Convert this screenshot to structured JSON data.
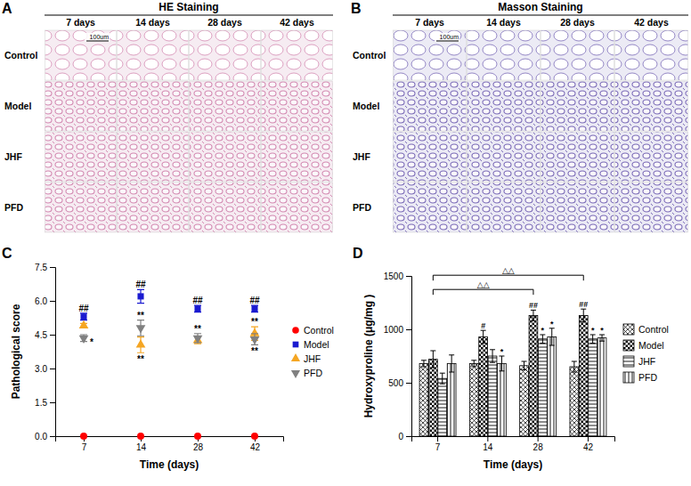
{
  "panels": [
    {
      "panel_label": "A",
      "title": "HE Staining",
      "columns": [
        "7 days",
        "14 days",
        "28 days",
        "42 days"
      ],
      "rows": [
        "Control",
        "Model",
        "JHF",
        "PFD"
      ],
      "scale_bar": "100um"
    },
    {
      "panel_label": "B",
      "title": "Masson Staining",
      "columns": [
        "7 days",
        "14 days",
        "28 days",
        "42 days"
      ],
      "rows": [
        "Control",
        "Model",
        "JHF",
        "PFD"
      ],
      "scale_bar": "100um"
    }
  ],
  "chart_data": [
    {
      "panel_label": "C",
      "type": "scatter",
      "x_label": "Time (days)",
      "y_label": "Pathological score",
      "categories": [
        "7",
        "14",
        "28",
        "42"
      ],
      "ylim": [
        0,
        7.5
      ],
      "yticks": [
        {
          "value": 0,
          "label": "0.0"
        },
        1.5,
        {
          "value": 3,
          "label": "3.0"
        },
        4.5,
        {
          "value": 6,
          "label": "6.0"
        },
        7.5
      ],
      "legend": "right",
      "series": [
        {
          "name": "Control",
          "color": "#ff0000",
          "marker": "circle",
          "values": [
            0,
            0,
            0,
            0
          ],
          "errors": [
            0,
            0,
            0,
            0
          ]
        },
        {
          "name": "Model",
          "color": "#1a1ad0",
          "marker": "square",
          "values": [
            5.3,
            6.2,
            5.65,
            5.65
          ],
          "errors": [
            0.15,
            0.3,
            0.15,
            0.15
          ]
        },
        {
          "name": "JHF",
          "color": "#f5a623",
          "marker": "triangle",
          "values": [
            4.9,
            4.05,
            4.25,
            4.55
          ],
          "errors": [
            0.1,
            0.35,
            0.15,
            0.3
          ]
        },
        {
          "name": "PFD",
          "color": "#808080",
          "marker": "triangle-down",
          "values": [
            4.35,
            4.8,
            4.35,
            4.3
          ],
          "errors": [
            0.15,
            0.35,
            0.2,
            0.25
          ]
        }
      ],
      "annotations": [
        {
          "text": "##",
          "category": "7",
          "series": "Model",
          "position": "above"
        },
        {
          "text": "*",
          "category": "7",
          "series": "PFD",
          "position": "right"
        },
        {
          "text": "##",
          "category": "14",
          "series": "Model",
          "position": "above"
        },
        {
          "text": "**",
          "category": "14",
          "series": "PFD",
          "position": "above"
        },
        {
          "text": "**",
          "category": "14",
          "series": "JHF",
          "position": "below"
        },
        {
          "text": "##",
          "category": "28",
          "series": "Model",
          "position": "above"
        },
        {
          "text": "**",
          "category": "28",
          "series": "PFD",
          "position": "above"
        },
        {
          "text": "##",
          "category": "42",
          "series": "Model",
          "position": "above"
        },
        {
          "text": "**",
          "category": "42",
          "series": "JHF",
          "position": "above"
        },
        {
          "text": "**",
          "category": "42",
          "series": "PFD",
          "position": "below"
        }
      ]
    },
    {
      "panel_label": "D",
      "type": "bar",
      "x_label": "Time (days)",
      "y_label": "Hydroxyproline (μg/mg )",
      "categories": [
        "7",
        "14",
        "28",
        "42"
      ],
      "ylim": [
        0,
        1500
      ],
      "yticks": [
        0,
        500,
        1000,
        1500
      ],
      "legend": "right",
      "series": [
        {
          "name": "Control",
          "color": "#000000",
          "values": [
            680,
            680,
            660,
            650
          ],
          "errors": [
            30,
            30,
            40,
            50
          ]
        },
        {
          "name": "Model",
          "color": "#000000",
          "values": [
            720,
            930,
            1130,
            1130
          ],
          "errors": [
            80,
            60,
            50,
            60
          ]
        },
        {
          "name": "JHF",
          "color": "#000000",
          "values": [
            540,
            750,
            910,
            910
          ],
          "errors": [
            50,
            60,
            40,
            40
          ]
        },
        {
          "name": "PFD",
          "color": "#000000",
          "values": [
            680,
            680,
            930,
            920
          ],
          "errors": [
            80,
            70,
            80,
            30
          ]
        }
      ],
      "annotations": [
        {
          "text": "#",
          "category": "14",
          "series": "Model",
          "position": "above"
        },
        {
          "text": "*",
          "category": "14",
          "series": "PFD",
          "position": "above"
        },
        {
          "text": "##",
          "category": "28",
          "series": "Model",
          "position": "above"
        },
        {
          "text": "*",
          "category": "28",
          "series": "JHF",
          "position": "above"
        },
        {
          "text": "*",
          "category": "28",
          "series": "PFD",
          "position": "above"
        },
        {
          "text": "##",
          "category": "42",
          "series": "Model",
          "position": "above"
        },
        {
          "text": "*",
          "category": "42",
          "series": "JHF",
          "position": "above"
        },
        {
          "text": "*",
          "category": "42",
          "series": "PFD",
          "position": "above"
        }
      ],
      "brackets": [
        {
          "text": "△△",
          "from": "7",
          "to": "28",
          "series": "Model"
        },
        {
          "text": "△△",
          "from": "7",
          "to": "42",
          "series": "Model"
        }
      ]
    }
  ]
}
